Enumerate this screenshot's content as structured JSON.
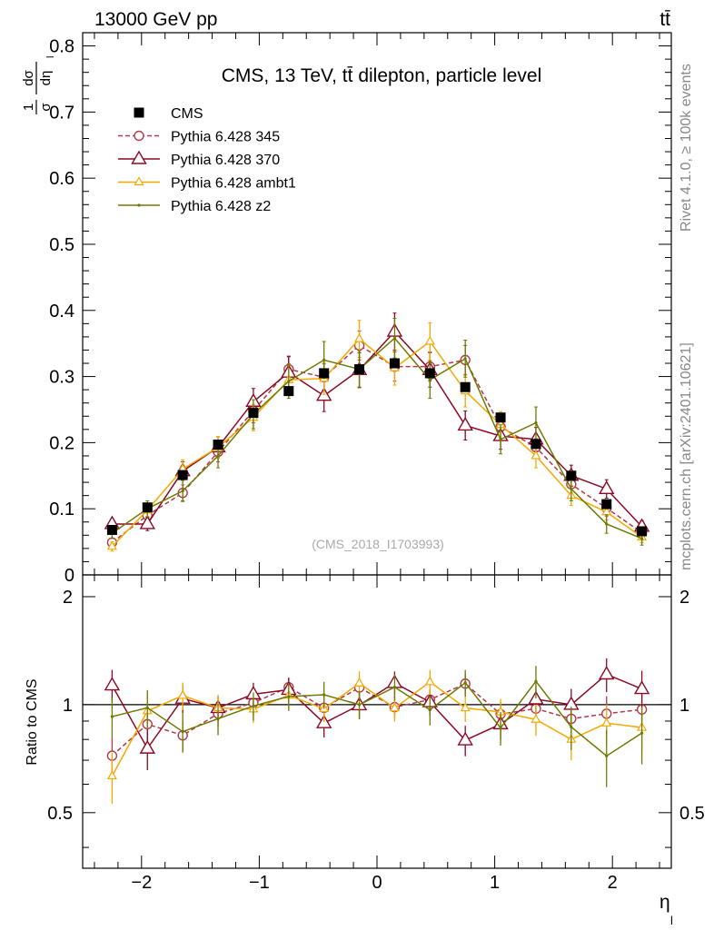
{
  "header": {
    "energy_label": "13000 GeV pp",
    "process_label": "tt̄"
  },
  "side_text": {
    "rivet": "Rivet 4.1.0, ≥ 100k events",
    "mcplots": "mcplots.cern.ch [arXiv:2401.10621]"
  },
  "chart_data": {
    "type": "line",
    "title": "CMS, 13 TeV, tt̄ dilepton, particle level",
    "watermark": "(CMS_2018_I1703993)",
    "ylabel": "1/σ dσ/dη_l",
    "ylabel_parts": {
      "num1": "1",
      "den1": "σ",
      "num2": "dσ",
      "den2": "dη",
      "sub": "l"
    },
    "xlabel": "η",
    "xlabel_sub": "l",
    "ratio_ylabel": "Ratio to CMS",
    "xlim": [
      -2.5,
      2.5
    ],
    "ylim": [
      0,
      0.82
    ],
    "ratio_ylim": [
      0.35,
      2.3
    ],
    "x_ticks": [
      "−2",
      "−1",
      "0",
      "1",
      "2"
    ],
    "y_ticks": [
      "0",
      "0.1",
      "0.2",
      "0.3",
      "0.4",
      "0.5",
      "0.6",
      "0.7",
      "0.8"
    ],
    "ratio_ticks": [
      "0.5",
      "1",
      "2"
    ],
    "x": [
      -2.25,
      -1.95,
      -1.65,
      -1.35,
      -1.05,
      -0.75,
      -0.45,
      -0.15,
      0.15,
      0.45,
      0.75,
      1.05,
      1.35,
      1.65,
      1.95,
      2.25
    ],
    "series": [
      {
        "name": "CMS",
        "color": "#000000",
        "style": "data",
        "values": [
          0.068,
          0.102,
          0.151,
          0.197,
          0.245,
          0.278,
          0.305,
          0.311,
          0.32,
          0.305,
          0.284,
          0.238,
          0.198,
          0.15,
          0.107,
          0.066
        ]
      },
      {
        "name": "Pythia 6.428 345",
        "color": "#b03a4b",
        "style": "dashed-circle",
        "values": [
          0.049,
          0.09,
          0.124,
          0.186,
          0.248,
          0.311,
          0.299,
          0.347,
          0.315,
          0.315,
          0.325,
          0.224,
          0.193,
          0.137,
          0.101,
          0.064
        ],
        "errors": [
          0.006,
          0.01,
          0.012,
          0.015,
          0.018,
          0.02,
          0.02,
          0.022,
          0.022,
          0.022,
          0.022,
          0.018,
          0.016,
          0.014,
          0.012,
          0.008
        ]
      },
      {
        "name": "Pythia 6.428 370",
        "color": "#8b0a25",
        "style": "triangle",
        "values": [
          0.077,
          0.077,
          0.157,
          0.193,
          0.262,
          0.306,
          0.271,
          0.31,
          0.368,
          0.31,
          0.226,
          0.21,
          0.205,
          0.15,
          0.13,
          0.073
        ],
        "errors": [
          0.008,
          0.01,
          0.014,
          0.016,
          0.02,
          0.024,
          0.024,
          0.026,
          0.028,
          0.026,
          0.022,
          0.02,
          0.018,
          0.016,
          0.014,
          0.009
        ]
      },
      {
        "name": "Pythia 6.428 ambt1",
        "color": "#f5a800",
        "style": "triangle-small",
        "values": [
          0.043,
          0.098,
          0.16,
          0.193,
          0.238,
          0.295,
          0.297,
          0.357,
          0.313,
          0.353,
          0.278,
          0.227,
          0.18,
          0.12,
          0.095,
          0.057
        ],
        "errors": [
          0.007,
          0.01,
          0.014,
          0.016,
          0.02,
          0.024,
          0.024,
          0.028,
          0.026,
          0.028,
          0.024,
          0.02,
          0.018,
          0.015,
          0.012,
          0.008
        ]
      },
      {
        "name": "Pythia 6.428 z2",
        "color": "#6e7a00",
        "style": "dot",
        "values": [
          0.063,
          0.1,
          0.127,
          0.18,
          0.243,
          0.293,
          0.325,
          0.311,
          0.358,
          0.295,
          0.327,
          0.205,
          0.23,
          0.13,
          0.077,
          0.055
        ],
        "errors": [
          0.008,
          0.012,
          0.016,
          0.018,
          0.022,
          0.026,
          0.028,
          0.028,
          0.03,
          0.028,
          0.028,
          0.022,
          0.024,
          0.018,
          0.014,
          0.01
        ]
      }
    ]
  }
}
